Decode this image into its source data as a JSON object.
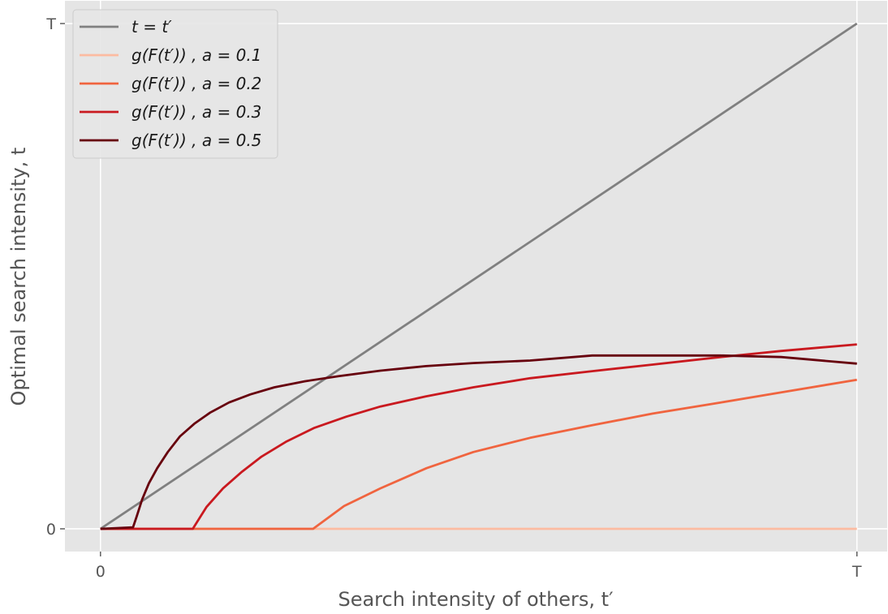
{
  "chart_data": {
    "type": "line",
    "xlabel": "Search intensity of others, t′",
    "ylabel": "Optimal search intensity, t",
    "xlim": [
      -0.047,
      1.04
    ],
    "ylim": [
      -0.045,
      1.045
    ],
    "xticks": [
      {
        "value": 0,
        "label": "0"
      },
      {
        "value": 1,
        "label": "T"
      }
    ],
    "yticks": [
      {
        "value": 0,
        "label": "0"
      },
      {
        "value": 1,
        "label": "T"
      }
    ],
    "grid": true,
    "legend_position": "top-left",
    "series": [
      {
        "name": "t = t′",
        "color": "#808080",
        "x": [
          0,
          1
        ],
        "y": [
          0,
          1
        ]
      },
      {
        "name": "g(F(t′)) , a = 0.1",
        "color": "#fcbba1",
        "x": [
          0,
          1
        ],
        "y": [
          0,
          0
        ]
      },
      {
        "name": "g(F(t′)) , a = 0.2",
        "color": "#f0643f",
        "x": [
          0,
          0.281,
          0.322,
          0.37,
          0.431,
          0.493,
          0.568,
          0.65,
          0.73,
          0.82,
          0.9,
          1.0
        ],
        "y": [
          0,
          0,
          0.045,
          0.08,
          0.12,
          0.152,
          0.18,
          0.205,
          0.228,
          0.25,
          0.27,
          0.295
        ]
      },
      {
        "name": "g(F(t′)) , a = 0.3",
        "color": "#c9191f",
        "x": [
          0,
          0.122,
          0.14,
          0.162,
          0.187,
          0.213,
          0.245,
          0.283,
          0.325,
          0.37,
          0.43,
          0.493,
          0.568,
          0.65,
          0.73,
          0.82,
          0.9,
          1.0
        ],
        "y": [
          0,
          0,
          0.043,
          0.08,
          0.113,
          0.143,
          0.172,
          0.2,
          0.222,
          0.242,
          0.262,
          0.28,
          0.298,
          0.312,
          0.325,
          0.34,
          0.352,
          0.365
        ]
      },
      {
        "name": "g(F(t′)) , a = 0.5",
        "color": "#67000d",
        "x": [
          0,
          0.043,
          0.048,
          0.055,
          0.064,
          0.075,
          0.089,
          0.105,
          0.124,
          0.145,
          0.17,
          0.198,
          0.23,
          0.27,
          0.315,
          0.37,
          0.43,
          0.493,
          0.568,
          0.65,
          0.73,
          0.82,
          0.9,
          1.0
        ],
        "y": [
          0,
          0.003,
          0.025,
          0.058,
          0.09,
          0.12,
          0.152,
          0.183,
          0.208,
          0.23,
          0.25,
          0.266,
          0.28,
          0.292,
          0.302,
          0.313,
          0.322,
          0.328,
          0.333,
          0.343,
          0.343,
          0.343,
          0.34,
          0.327
        ]
      }
    ]
  }
}
